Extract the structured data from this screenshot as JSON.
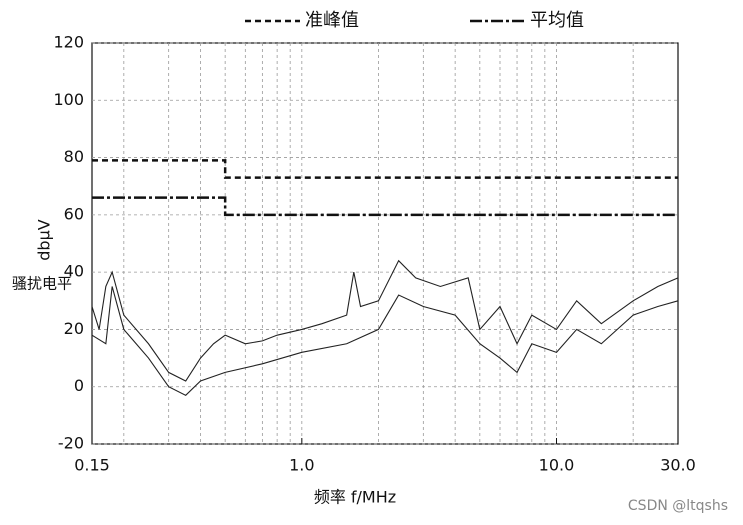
{
  "chart_data": {
    "type": "line",
    "y_label": "dbµV",
    "y_label2": "骚扰电平",
    "x_label": "频率 f/MHz",
    "xlog": true,
    "grid": true,
    "xlim": [
      0.15,
      30
    ],
    "ylim": [
      -20,
      120
    ],
    "xticks": [
      0.15,
      {
        "value": 1,
        "label": "1.0"
      },
      {
        "value": 10,
        "label": "10.0"
      },
      {
        "value": 30,
        "label": "30.0"
      }
    ],
    "yticks": [
      -20,
      0,
      20,
      40,
      60,
      80,
      100,
      120
    ],
    "series": [
      {
        "name": "准峰值",
        "color": "#111",
        "style": "dashed",
        "x": [
          0.15,
          0.5,
          0.5,
          30
        ],
        "values": [
          79,
          79,
          73,
          73
        ]
      },
      {
        "name": "平均值",
        "color": "#111",
        "style": "dashdot",
        "x": [
          0.15,
          0.5,
          0.5,
          30
        ],
        "values": [
          66,
          66,
          60,
          60
        ]
      },
      {
        "color": "#222",
        "style": "solid",
        "x": [
          0.15,
          0.16,
          0.17,
          0.18,
          0.2,
          0.25,
          0.3,
          0.35,
          0.4,
          0.45,
          0.5,
          0.6,
          0.7,
          0.8,
          1.0,
          1.2,
          1.5,
          1.6,
          1.7,
          2.0,
          2.4,
          2.8,
          3.5,
          4.5,
          5,
          6,
          7,
          8,
          10,
          12,
          15,
          20,
          25,
          30
        ],
        "values": [
          28,
          20,
          35,
          40,
          25,
          15,
          5,
          2,
          10,
          15,
          18,
          15,
          16,
          18,
          20,
          22,
          25,
          40,
          28,
          30,
          44,
          38,
          35,
          38,
          20,
          28,
          15,
          25,
          20,
          30,
          22,
          30,
          35,
          38
        ]
      },
      {
        "color": "#222",
        "style": "solid",
        "x": [
          0.15,
          0.17,
          0.18,
          0.2,
          0.25,
          0.3,
          0.35,
          0.4,
          0.5,
          0.7,
          1.0,
          1.5,
          2.0,
          2.4,
          3,
          4,
          5,
          6,
          7,
          8,
          10,
          12,
          15,
          20,
          25,
          30
        ],
        "values": [
          18,
          15,
          35,
          20,
          10,
          0,
          -3,
          2,
          5,
          8,
          12,
          15,
          20,
          32,
          28,
          25,
          15,
          10,
          5,
          15,
          12,
          20,
          15,
          25,
          28,
          30
        ]
      }
    ],
    "watermark": "CSDN @ltqshs"
  }
}
